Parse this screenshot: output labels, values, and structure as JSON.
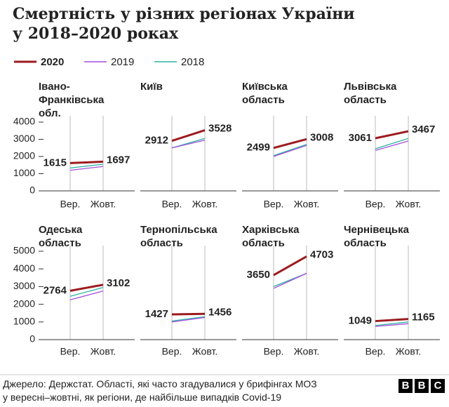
{
  "title": [
    "Смертність у різних регіонах України",
    "у 2018–2020 роках"
  ],
  "source": [
    "Джерело: Держстат. Області, які часто згадувалися у брифінгах МОЗ",
    "у вересні–жовтні, як регіони, де найбільше випадків Covid-19"
  ],
  "logo": [
    "B",
    "B",
    "C"
  ],
  "chart_data": [
    {
      "type": "line",
      "title": "Івано-Франківська обл.",
      "categories": [
        "Вер.",
        "Жовт."
      ],
      "ylim": [
        0,
        4000
      ],
      "yticks": [
        0,
        1000,
        2000,
        3000,
        4000
      ],
      "series": [
        {
          "name": "2020",
          "color": "#9c1b1f",
          "values": [
            1615,
            1697
          ]
        },
        {
          "name": "2019",
          "color": "#a64ddf",
          "values": [
            1200,
            1420
          ]
        },
        {
          "name": "2018",
          "color": "#2bb3a0",
          "values": [
            1330,
            1550
          ]
        }
      ]
    },
    {
      "type": "line",
      "title": "Київ",
      "categories": [
        "Вер.",
        "Жовт."
      ],
      "ylim": [
        0,
        4000
      ],
      "series": [
        {
          "name": "2020",
          "color": "#9c1b1f",
          "values": [
            2912,
            3528
          ]
        },
        {
          "name": "2019",
          "color": "#a64ddf",
          "values": [
            2500,
            2950
          ]
        },
        {
          "name": "2018",
          "color": "#2bb3a0",
          "values": [
            2500,
            3050
          ]
        }
      ]
    },
    {
      "type": "line",
      "title": "Київська область",
      "categories": [
        "Вер.",
        "Жовт."
      ],
      "ylim": [
        0,
        4000
      ],
      "series": [
        {
          "name": "2020",
          "color": "#9c1b1f",
          "values": [
            2499,
            3008
          ]
        },
        {
          "name": "2019",
          "color": "#a64ddf",
          "values": [
            2000,
            2650
          ]
        },
        {
          "name": "2018",
          "color": "#2bb3a0",
          "values": [
            2050,
            2700
          ]
        }
      ]
    },
    {
      "type": "line",
      "title": "Львівська область",
      "categories": [
        "Вер.",
        "Жовт."
      ],
      "ylim": [
        0,
        4000
      ],
      "series": [
        {
          "name": "2020",
          "color": "#9c1b1f",
          "values": [
            3061,
            3467
          ]
        },
        {
          "name": "2019",
          "color": "#a64ddf",
          "values": [
            2350,
            2900
          ]
        },
        {
          "name": "2018",
          "color": "#2bb3a0",
          "values": [
            2450,
            3050
          ]
        }
      ]
    },
    {
      "type": "line",
      "title": "Одеська область",
      "categories": [
        "Вер.",
        "Жовт."
      ],
      "ylim": [
        0,
        5000
      ],
      "yticks": [
        0,
        1000,
        2000,
        3000,
        4000,
        5000
      ],
      "series": [
        {
          "name": "2020",
          "color": "#9c1b1f",
          "values": [
            2764,
            3102
          ]
        },
        {
          "name": "2019",
          "color": "#a64ddf",
          "values": [
            2250,
            2750
          ]
        },
        {
          "name": "2018",
          "color": "#2bb3a0",
          "values": [
            2450,
            2950
          ]
        }
      ]
    },
    {
      "type": "line",
      "title": "Тернопільська область",
      "categories": [
        "Вер.",
        "Жовт."
      ],
      "ylim": [
        0,
        5000
      ],
      "series": [
        {
          "name": "2020",
          "color": "#9c1b1f",
          "values": [
            1427,
            1456
          ]
        },
        {
          "name": "2019",
          "color": "#a64ddf",
          "values": [
            1000,
            1250
          ]
        },
        {
          "name": "2018",
          "color": "#2bb3a0",
          "values": [
            1050,
            1300
          ]
        }
      ]
    },
    {
      "type": "line",
      "title": "Харківська область",
      "categories": [
        "Вер.",
        "Жовт."
      ],
      "ylim": [
        0,
        5000
      ],
      "series": [
        {
          "name": "2020",
          "color": "#9c1b1f",
          "values": [
            3650,
            4703
          ]
        },
        {
          "name": "2019",
          "color": "#a64ddf",
          "values": [
            2900,
            3750
          ]
        },
        {
          "name": "2018",
          "color": "#2bb3a0",
          "values": [
            3000,
            3750
          ]
        }
      ]
    },
    {
      "type": "line",
      "title": "Чернівецька область",
      "categories": [
        "Вер.",
        "Жовт."
      ],
      "ylim": [
        0,
        5000
      ],
      "series": [
        {
          "name": "2020",
          "color": "#9c1b1f",
          "values": [
            1049,
            1165
          ]
        },
        {
          "name": "2019",
          "color": "#a64ddf",
          "values": [
            750,
            900
          ]
        },
        {
          "name": "2018",
          "color": "#2bb3a0",
          "values": [
            800,
            1000
          ]
        }
      ]
    }
  ]
}
